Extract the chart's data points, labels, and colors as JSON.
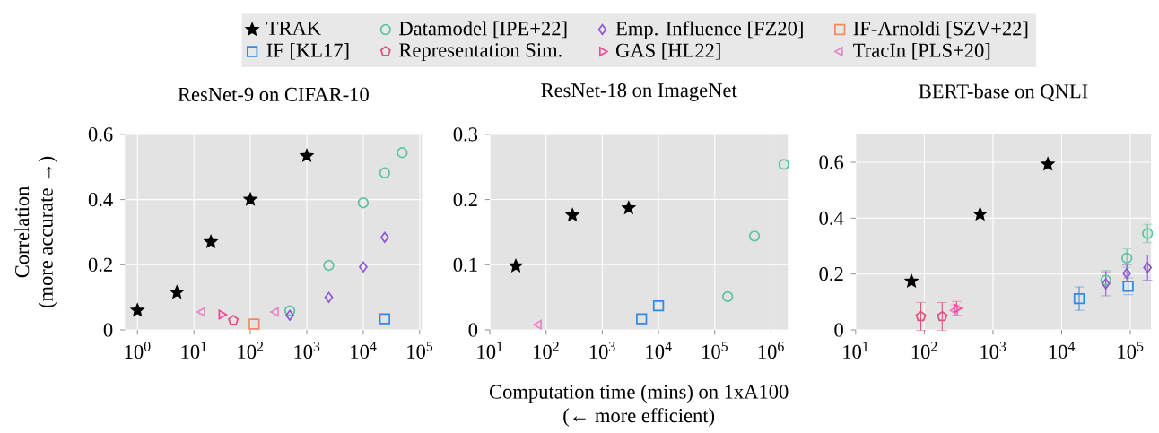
{
  "chart_data": [
    {
      "type": "scatter",
      "title": "ResNet-9 on CIFAR-10",
      "ylabel": "Correlation (more accurate →)",
      "log": "x",
      "grid": true,
      "legend": "top",
      "xlim": [
        0.6,
        110000
      ],
      "ylim": [
        0,
        0.6
      ],
      "xticks": [
        {
          "value": 1,
          "label": "10$^{0}$"
        },
        {
          "value": 10,
          "label": "10$^{1}$"
        },
        {
          "value": 100,
          "label": "10$^{2}$"
        },
        {
          "value": 1000,
          "label": "10$^{3}$"
        },
        {
          "value": 10000,
          "label": "10$^{4}$"
        },
        {
          "value": 100000,
          "label": "10$^{5}$"
        }
      ],
      "yticks": [
        0,
        0.2,
        0.4,
        0.6
      ],
      "series": [
        {
          "name": "TRAK",
          "color": "#000000",
          "marker": "star",
          "x": [
            1,
            5,
            20,
            100,
            1000
          ],
          "values": [
            0.06,
            0.115,
            0.27,
            0.4,
            0.534
          ]
        },
        {
          "name": "Datamodel [IPE+22]",
          "color": "#5bc49c",
          "marker": "circle",
          "x": [
            500,
            2450,
            10000,
            24000,
            49000
          ],
          "values": [
            0.059,
            0.198,
            0.39,
            0.482,
            0.544
          ]
        },
        {
          "name": "Emp. Influence [FZ20]",
          "color": "#9058d0",
          "marker": "diamond",
          "x": [
            500,
            2450,
            10000,
            24000
          ],
          "values": [
            0.045,
            0.1,
            0.193,
            0.284
          ]
        },
        {
          "name": "IF-Arnoldi [SZV+22]",
          "color": "#f8875f",
          "marker": "square",
          "x": [
            117
          ],
          "values": [
            0.018
          ]
        },
        {
          "name": "IF [KL17]",
          "color": "#2f8ae6",
          "marker": "square",
          "x": [
            24000
          ],
          "values": [
            0.034
          ]
        },
        {
          "name": "Representation Sim.",
          "color": "#e0507a",
          "x": [
            50
          ],
          "values": [
            0.029
          ]
        },
        {
          "name": "GAS [HL22]",
          "color": "#f5469c",
          "marker": "triangle-right",
          "x": [
            31
          ],
          "values": [
            0.047
          ]
        },
        {
          "name": "TracIn [PLS+20]",
          "color": "#e887c4",
          "marker": "triangle-left",
          "x": [
            14,
            282
          ],
          "values": [
            0.055,
            0.055
          ]
        }
      ]
    },
    {
      "type": "scatter",
      "title": "ResNet-18 on ImageNet",
      "xlabel": "Computation time (mins) on 1xA100 (← more efficient)",
      "log": "x",
      "grid": true,
      "xlim": [
        10,
        2000000
      ],
      "ylim": [
        0,
        0.3
      ],
      "xticks": [
        {
          "value": 10,
          "label": "10$^{1}$"
        },
        {
          "value": 100,
          "label": "10$^{2}$"
        },
        {
          "value": 1000,
          "label": "10$^{3}$"
        },
        {
          "value": 10000,
          "label": "10$^{4}$"
        },
        {
          "value": 100000,
          "label": "10$^{5}$"
        },
        {
          "value": 1000000,
          "label": "10$^{6}$"
        }
      ],
      "yticks": [
        0,
        0.1,
        0.2,
        0.3
      ],
      "series": [
        {
          "color": "#000000",
          "marker": "star",
          "x": [
            29,
            295,
            2950
          ],
          "values": [
            0.098,
            0.176,
            0.187
          ]
        },
        {
          "color": "#5bc49c",
          "marker": "circle",
          "x": [
            170000,
            510000,
            1700000
          ],
          "values": [
            0.051,
            0.144,
            0.254
          ]
        },
        {
          "color": "#2f8ae6",
          "marker": "square",
          "x": [
            5000,
            10000
          ],
          "values": [
            0.017,
            0.037
          ]
        },
        {
          "color": "#e887c4",
          "marker": "triangle-left",
          "x": [
            74
          ],
          "values": [
            0.008
          ]
        }
      ]
    },
    {
      "type": "scatter",
      "title": "BERT-base on QNLI",
      "log": "x",
      "grid": true,
      "xlim": [
        10,
        200000
      ],
      "ylim": [
        0,
        0.7
      ],
      "xticks": [
        {
          "value": 10,
          "label": "10$^{1}$"
        },
        {
          "value": 100,
          "label": "10$^{2}$"
        },
        {
          "value": 1000,
          "label": "10$^{3}$"
        },
        {
          "value": 10000,
          "label": "10$^{4}$"
        },
        {
          "value": 100000,
          "label": "10$^{5}$"
        }
      ],
      "yticks": [
        0,
        0.2,
        0.4,
        0.6
      ],
      "series": [
        {
          "color": "#000000",
          "marker": "star",
          "x": [
            65,
            650,
            6300
          ],
          "values": [
            0.174,
            0.414,
            0.593
          ]
        },
        {
          "color": "#5bc49c",
          "marker": "circle",
          "x": [
            44000,
            89000,
            178000
          ],
          "values": [
            0.178,
            0.257,
            0.345
          ],
          "errors": [
            0.035,
            0.033,
            0.033
          ]
        },
        {
          "color": "#9058d0",
          "marker": "diamond",
          "x": [
            44000,
            89000,
            178000
          ],
          "values": [
            0.165,
            0.202,
            0.223
          ],
          "errors": [
            0.043,
            0.03,
            0.045
          ]
        },
        {
          "color": "#2f8ae6",
          "marker": "square",
          "x": [
            18000,
            93000
          ],
          "values": [
            0.112,
            0.156
          ],
          "errors": [
            0.042,
            0.03
          ]
        },
        {
          "color": "#e0507a",
          "x": [
            89,
            182
          ],
          "values": [
            0.048,
            0.048
          ],
          "errors": [
            0.05,
            0.05
          ]
        },
        {
          "color": "#e887c4",
          "marker": "triangle-left",
          "x": [
            280
          ],
          "values": [
            0.07
          ],
          "errors": [
            0.02
          ]
        },
        {
          "color": "#f5469c",
          "marker": "triangle-right",
          "x": [
            295
          ],
          "values": [
            0.077
          ],
          "errors": [
            0.025
          ]
        }
      ]
    }
  ]
}
